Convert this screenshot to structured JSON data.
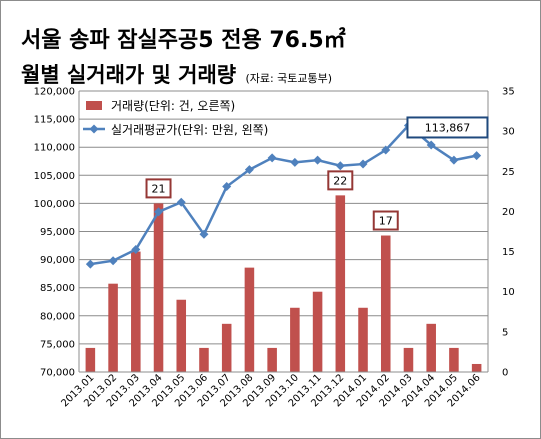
{
  "title_line1": "서울 송파 잠실주공5  전용 76.5㎡",
  "title_line2": "월별 실거래가 및 거래량",
  "title_source": "(자료: 국토교통부)",
  "chart_data": {
    "type": "bar+line",
    "categories": [
      "2013.01",
      "2013.02",
      "2013.03",
      "2013.04",
      "2013.05",
      "2013.06",
      "2013.07",
      "2013.08",
      "2013.09",
      "2013.10",
      "2013.11",
      "2013.12",
      "2014.01",
      "2014.02",
      "2014.03",
      "2014.04",
      "2014.05",
      "2014.06"
    ],
    "series": [
      {
        "name": "거래량(단위: 건, 오른쪽)",
        "type": "bar",
        "axis": "right",
        "color": "#c0504d",
        "values": [
          3,
          11,
          15,
          21,
          9,
          3,
          6,
          13,
          3,
          8,
          10,
          22,
          8,
          17,
          3,
          6,
          3,
          1
        ]
      },
      {
        "name": "실거래평균가(단위: 만원, 왼쪽)",
        "type": "line",
        "axis": "left",
        "color": "#4f81bd",
        "values": [
          89200,
          89800,
          91800,
          98500,
          100200,
          94500,
          103000,
          106000,
          108100,
          107300,
          107700,
          106700,
          107000,
          109500,
          113867,
          110400,
          107700,
          108500
        ]
      }
    ],
    "left_axis": {
      "min": 70000,
      "max": 120000,
      "step": 5000,
      "ticks": [
        "70,000",
        "75,000",
        "80,000",
        "85,000",
        "90,000",
        "95,000",
        "100,000",
        "105,000",
        "110,000",
        "115,000",
        "120,000"
      ]
    },
    "right_axis": {
      "min": 0,
      "max": 35,
      "step": 5,
      "ticks": [
        "0",
        "5",
        "10",
        "15",
        "20",
        "25",
        "30",
        "35"
      ]
    },
    "grid": true,
    "legend": "top-left",
    "annotations": [
      {
        "category_index": 3,
        "series": 0,
        "text": "21",
        "style": "bar-callout",
        "color": "#953735"
      },
      {
        "category_index": 11,
        "series": 0,
        "text": "22",
        "style": "bar-callout",
        "color": "#953735"
      },
      {
        "category_index": 13,
        "series": 0,
        "text": "17",
        "style": "bar-callout",
        "color": "#953735"
      },
      {
        "category_index": 14,
        "series": 1,
        "text": "113,867",
        "style": "line-callout",
        "color": "#1f497d"
      }
    ]
  }
}
